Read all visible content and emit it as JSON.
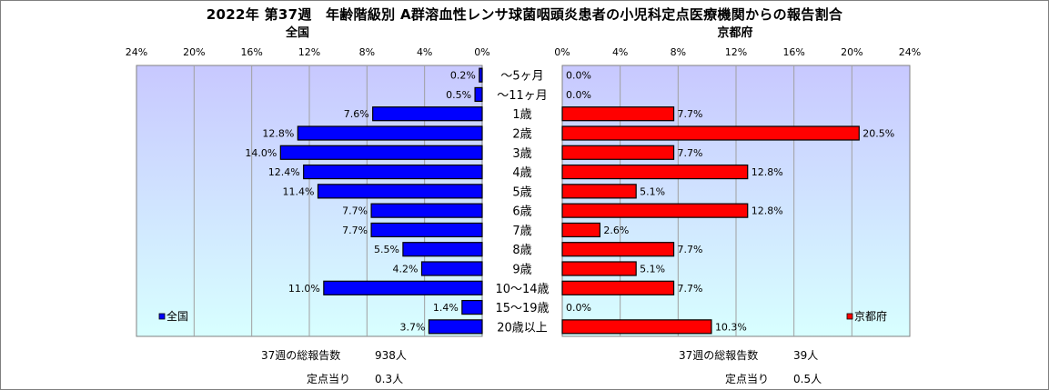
{
  "title": "2022年 第37週　年齢階級別 A群溶血性レンサ球菌咽頭炎患者の小児科定点医療機関からの報告割合",
  "colors": {
    "national_bar": "#0000ff",
    "kyoto_bar": "#ff0000",
    "plot_top": "#c8c8ff",
    "plot_bottom": "#d8ffff",
    "grid": "#a0a0a0"
  },
  "chart_data": [
    {
      "type": "bar",
      "orientation": "horizontal",
      "direction": "right-to-left",
      "title": "全国",
      "legend": "全国",
      "legend_position": "bottom-left",
      "xlim": [
        0,
        24
      ],
      "tick_labels": [
        "0%",
        "4%",
        "8%",
        "12%",
        "16%",
        "20%",
        "24%"
      ],
      "categories": [
        "～5ヶ月",
        "～11ヶ月",
        "1歳",
        "2歳",
        "3歳",
        "4歳",
        "5歳",
        "6歳",
        "7歳",
        "8歳",
        "9歳",
        "10～14歳",
        "15～19歳",
        "20歳以上"
      ],
      "values": [
        0.2,
        0.5,
        7.6,
        12.8,
        14.0,
        12.4,
        11.4,
        7.7,
        7.7,
        5.5,
        4.2,
        11.0,
        1.4,
        3.7
      ],
      "value_labels": [
        "0.2%",
        "0.5%",
        "7.6%",
        "12.8%",
        "14.0%",
        "12.4%",
        "11.4%",
        "7.7%",
        "7.7%",
        "5.5%",
        "4.2%",
        "11.0%",
        "1.4%",
        "3.7%"
      ],
      "grid": true,
      "footer": {
        "total_label": "37週の総報告数",
        "total_value": "938人",
        "per_site_label": "定点当り",
        "per_site_value": "0.3人"
      }
    },
    {
      "type": "bar",
      "orientation": "horizontal",
      "direction": "left-to-right",
      "title": "京都府",
      "legend": "京都府",
      "legend_position": "bottom-right",
      "xlim": [
        0,
        24
      ],
      "tick_labels": [
        "0%",
        "4%",
        "8%",
        "12%",
        "16%",
        "20%",
        "24%"
      ],
      "categories": [
        "～5ヶ月",
        "～11ヶ月",
        "1歳",
        "2歳",
        "3歳",
        "4歳",
        "5歳",
        "6歳",
        "7歳",
        "8歳",
        "9歳",
        "10～14歳",
        "15～19歳",
        "20歳以上"
      ],
      "values": [
        0.0,
        0.0,
        7.7,
        20.5,
        7.7,
        12.8,
        5.1,
        12.8,
        2.6,
        7.7,
        5.1,
        7.7,
        0.0,
        10.3
      ],
      "value_labels": [
        "0.0%",
        "0.0%",
        "7.7%",
        "20.5%",
        "7.7%",
        "12.8%",
        "5.1%",
        "12.8%",
        "2.6%",
        "7.7%",
        "5.1%",
        "7.7%",
        "0.0%",
        "10.3%"
      ],
      "grid": true,
      "footer": {
        "total_label": "37週の総報告数",
        "total_value": "39人",
        "per_site_label": "定点当り",
        "per_site_value": "0.5人"
      }
    }
  ]
}
